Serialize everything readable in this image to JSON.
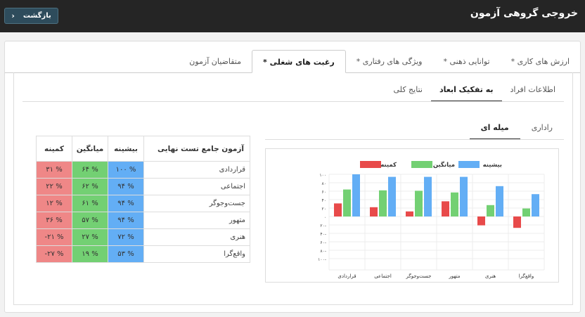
{
  "header": {
    "title": "خروجی گروهی آزمون",
    "back_label": "بازگشت"
  },
  "main_tabs": [
    {
      "label": "متقاضیان آزمون",
      "active": false
    },
    {
      "label": "رغبت های شغلی *",
      "active": true
    },
    {
      "label": "ویژگی های رفتاری *",
      "active": false
    },
    {
      "label": "توانایی ذهنی *",
      "active": false
    },
    {
      "label": "ارزش های کاری *",
      "active": false
    }
  ],
  "sub_tabs": [
    {
      "label": "نتایج کلی",
      "active": false
    },
    {
      "label": "به تفکیک ابعاد",
      "active": true
    },
    {
      "label": "اطلاعات افراد",
      "active": false
    }
  ],
  "chart_tabs": [
    {
      "label": "میله ای",
      "active": true
    },
    {
      "label": "راداری",
      "active": false
    }
  ],
  "table": {
    "headers": {
      "name": "آزمون جامع تست نهایی",
      "max": "بیشینه",
      "avg": "میانگین",
      "min": "کمینه"
    },
    "rows": [
      {
        "name": "قراردادی",
        "max": "% ۱۰۰",
        "avg": "% ۶۴",
        "min": "% ۳۱"
      },
      {
        "name": "اجتماعی",
        "max": "% ۹۴",
        "avg": "% ۶۲",
        "min": "% ۲۲"
      },
      {
        "name": "جست‌وجوگر",
        "max": "% ۹۴",
        "avg": "% ۶۱",
        "min": "% ۱۲"
      },
      {
        "name": "متهور",
        "max": "% ۹۴",
        "avg": "% ۵۷",
        "min": "% ۳۶"
      },
      {
        "name": "هنری",
        "max": "% ۷۲",
        "avg": "% ۲۷",
        "min": "% ۲۱-"
      },
      {
        "name": "واقع‌گرا",
        "max": "% ۵۳",
        "avg": "% ۱۹",
        "min": "% ۲۷-"
      }
    ]
  },
  "colors": {
    "max": "#63aef5",
    "avg": "#73d073",
    "min": "#e84a4a"
  },
  "chart_data": {
    "type": "bar",
    "categories": [
      "قراردادی",
      "اجتماعی",
      "جست‌وجوگر",
      "متهور",
      "هنری",
      "واقع‌گرا"
    ],
    "series": [
      {
        "name": "کمینه",
        "values": [
          31,
          22,
          12,
          36,
          -21,
          -27
        ]
      },
      {
        "name": "میانگین",
        "values": [
          64,
          62,
          61,
          57,
          27,
          19
        ]
      },
      {
        "name": "بیشینه",
        "values": [
          100,
          94,
          94,
          94,
          72,
          53
        ]
      }
    ],
    "ylim": [
      -100,
      100
    ],
    "yticks": [
      "۱۰۰",
      "۸۰",
      "۶۰",
      "۴۰",
      "۲۰",
      "۰",
      "۲۰-",
      "۴۰-",
      "۶۰-",
      "۸۰-",
      "۱۰۰-"
    ],
    "legend": "top-center",
    "grid": true
  }
}
